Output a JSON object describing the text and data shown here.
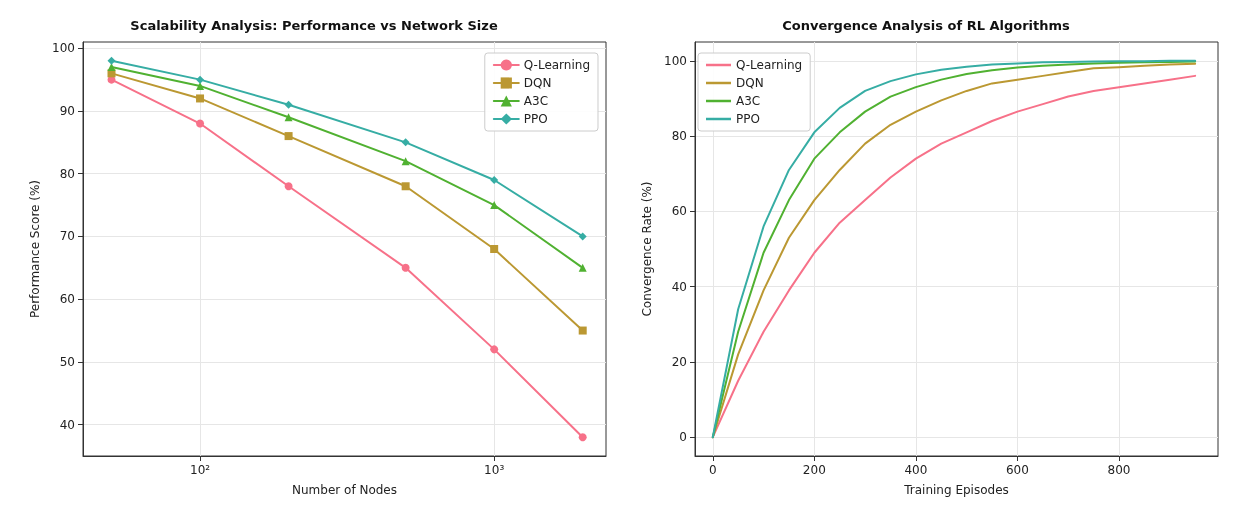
{
  "chart_data": [
    {
      "type": "line",
      "title": "Scalability Analysis: Performance vs Network Size",
      "xlabel": "Number of Nodes",
      "ylabel": "Performance Score (%)",
      "x": [
        50,
        100,
        200,
        500,
        1000,
        2000
      ],
      "log": "x",
      "xlim": [
        40,
        2400
      ],
      "xticks": [
        {
          "value": 100,
          "label": "10²"
        },
        {
          "value": 1000,
          "label": "10³"
        }
      ],
      "ylim": [
        35,
        101
      ],
      "yticks": [
        40,
        50,
        60,
        70,
        80,
        90,
        100
      ],
      "grid": true,
      "legend": "top right",
      "series": [
        {
          "name": "Q-Learning",
          "color": "#f77189",
          "marker": "circle",
          "values": [
            95,
            88,
            78,
            65,
            52,
            38
          ]
        },
        {
          "name": "DQN",
          "color": "#bb9832",
          "marker": "square",
          "values": [
            96,
            92,
            86,
            78,
            68,
            55
          ]
        },
        {
          "name": "A3C",
          "color": "#50b131",
          "marker": "triangle",
          "values": [
            97,
            94,
            89,
            82,
            75,
            65
          ]
        },
        {
          "name": "PPO",
          "color": "#36ada4",
          "marker": "diamond",
          "values": [
            98,
            95,
            91,
            85,
            79,
            70
          ]
        }
      ]
    },
    {
      "type": "line",
      "title": "Convergence Analysis of RL Algorithms",
      "xlabel": "Training Episodes",
      "ylabel": "Convergence Rate (%)",
      "x": [
        0,
        50,
        100,
        150,
        200,
        250,
        300,
        350,
        400,
        450,
        500,
        550,
        600,
        650,
        700,
        750,
        800,
        850,
        900,
        950
      ],
      "xlim": [
        -35,
        995
      ],
      "xticks": [
        0,
        200,
        400,
        600,
        800
      ],
      "ylim": [
        -5,
        105
      ],
      "yticks": [
        0,
        20,
        40,
        60,
        80,
        100
      ],
      "grid": true,
      "legend": "top left",
      "marker": "none",
      "series": [
        {
          "name": "Q-Learning",
          "color": "#f77189",
          "values": [
            0,
            15,
            28,
            39,
            49,
            57,
            63,
            69,
            74,
            78,
            81,
            84,
            86.5,
            88.5,
            90.5,
            92,
            93,
            94,
            95,
            96
          ]
        },
        {
          "name": "DQN",
          "color": "#bb9832",
          "values": [
            0,
            22,
            39,
            53,
            63,
            71,
            78,
            83,
            86.5,
            89.5,
            92,
            94,
            95,
            96,
            97,
            98,
            98.3,
            98.7,
            99,
            99.2
          ]
        },
        {
          "name": "A3C",
          "color": "#50b131",
          "values": [
            0,
            28,
            49,
            63,
            74,
            81,
            86.5,
            90.5,
            93,
            95,
            96.5,
            97.5,
            98.2,
            98.7,
            99,
            99.3,
            99.5,
            99.6,
            99.7,
            99.8
          ]
        },
        {
          "name": "PPO",
          "color": "#36ada4",
          "values": [
            0,
            34,
            56,
            71,
            81,
            87.5,
            92,
            94.6,
            96.4,
            97.6,
            98.4,
            99,
            99.3,
            99.6,
            99.7,
            99.8,
            99.9,
            99.9,
            100,
            100
          ]
        }
      ]
    }
  ]
}
